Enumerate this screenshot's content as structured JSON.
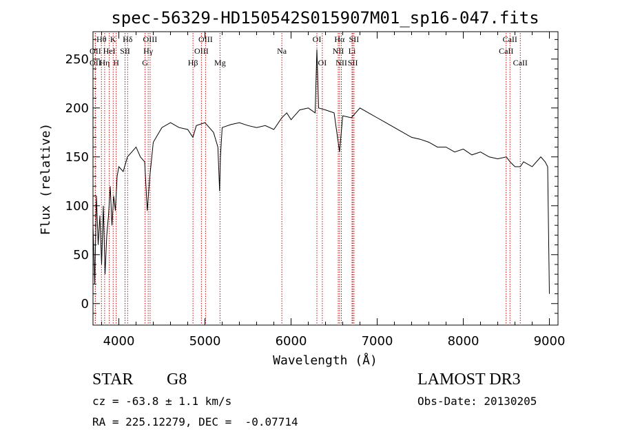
{
  "chart_data": {
    "type": "line",
    "title": "spec-56329-HD150542S015907M01_sp16-047.fits",
    "xlabel": "Wavelength (Å)",
    "ylabel": "Flux (relative)",
    "xlim": [
      3700,
      9100
    ],
    "ylim": [
      -22,
      278
    ],
    "x_ticks": [
      4000,
      5000,
      6000,
      7000,
      8000,
      9000
    ],
    "y_ticks": [
      0,
      50,
      100,
      150,
      200,
      250
    ],
    "grid": false,
    "line_color": "#000000",
    "marker_color": "#cc0000",
    "series": [
      {
        "x": [
          3700,
          3720,
          3740,
          3760,
          3780,
          3800,
          3820,
          3840,
          3860,
          3880,
          3900,
          3920,
          3940,
          3960,
          3980,
          4000,
          4050,
          4100,
          4150,
          4200,
          4250,
          4300,
          4330,
          4360,
          4400,
          4500,
          4600,
          4700,
          4800,
          4860,
          4900,
          5000,
          5100,
          5150,
          5170,
          5180,
          5200,
          5300,
          5400,
          5500,
          5600,
          5700,
          5800,
          5893,
          5950,
          6000,
          6100,
          6200,
          6280,
          6300,
          6320,
          6400,
          6500,
          6563,
          6600,
          6700,
          6800,
          6900,
          7000,
          7100,
          7200,
          7300,
          7400,
          7500,
          7600,
          7700,
          7800,
          7900,
          8000,
          8100,
          8200,
          8300,
          8400,
          8500,
          8542,
          8600,
          8662,
          8700,
          8800,
          8900,
          8950,
          8980,
          9000
        ],
        "y": [
          80,
          20,
          110,
          60,
          90,
          40,
          100,
          30,
          70,
          90,
          120,
          80,
          110,
          95,
          130,
          140,
          135,
          150,
          155,
          160,
          150,
          145,
          95,
          130,
          165,
          180,
          185,
          180,
          178,
          170,
          182,
          185,
          175,
          160,
          115,
          150,
          180,
          183,
          185,
          182,
          180,
          182,
          178,
          190,
          195,
          188,
          198,
          200,
          195,
          260,
          200,
          198,
          195,
          155,
          192,
          190,
          200,
          195,
          190,
          185,
          180,
          175,
          170,
          168,
          165,
          160,
          160,
          155,
          158,
          152,
          155,
          150,
          148,
          150,
          145,
          140,
          140,
          145,
          140,
          150,
          145,
          140,
          10
        ]
      }
    ]
  },
  "spectral_lines": [
    {
      "label": "OII",
      "wl": 3727,
      "row": 3
    },
    {
      "label": "Hθ",
      "wl": 3798,
      "row": 1
    },
    {
      "label": "OII",
      "wl": 3727,
      "row": 2
    },
    {
      "label": "Hη",
      "wl": 3835,
      "row": 3
    },
    {
      "label": "HeI",
      "wl": 3889,
      "row": 2
    },
    {
      "label": "K",
      "wl": 3934,
      "row": 1
    },
    {
      "label": "H",
      "wl": 3969,
      "row": 3
    },
    {
      "label": "SII",
      "wl": 4072,
      "row": 2
    },
    {
      "label": "Hδ",
      "wl": 4102,
      "row": 1
    },
    {
      "label": "G",
      "wl": 4305,
      "row": 3
    },
    {
      "label": "Hγ",
      "wl": 4341,
      "row": 2
    },
    {
      "label": "OIII",
      "wl": 4363,
      "row": 1
    },
    {
      "label": "Hβ",
      "wl": 4861,
      "row": 3
    },
    {
      "label": "OIII",
      "wl": 4959,
      "row": 2
    },
    {
      "label": "OIII",
      "wl": 5007,
      "row": 1
    },
    {
      "label": "Mg",
      "wl": 5175,
      "row": 3
    },
    {
      "label": "Na",
      "wl": 5893,
      "row": 2
    },
    {
      "label": "OI",
      "wl": 6300,
      "row": 1
    },
    {
      "label": "OI",
      "wl": 6363,
      "row": 3
    },
    {
      "label": "NII",
      "wl": 6548,
      "row": 2
    },
    {
      "label": "Hα",
      "wl": 6563,
      "row": 1
    },
    {
      "label": "NII",
      "wl": 6584,
      "row": 3
    },
    {
      "label": "SII",
      "wl": 6717,
      "row": 3
    },
    {
      "label": "Li",
      "wl": 6708,
      "row": 2
    },
    {
      "label": "SII",
      "wl": 6731,
      "row": 1
    },
    {
      "label": "CaII",
      "wl": 8498,
      "row": 2
    },
    {
      "label": "CaII",
      "wl": 8542,
      "row": 1
    },
    {
      "label": "CaII",
      "wl": 8662,
      "row": 3
    }
  ],
  "info": {
    "object_class": "STAR",
    "subclass": "G8",
    "survey": "LAMOST DR3",
    "cz": "cz = -63.8 ± 1.1 km/s",
    "obs_date": "Obs-Date: 20130205",
    "coords": "RA = 225.12279, DEC =  -0.07714"
  }
}
